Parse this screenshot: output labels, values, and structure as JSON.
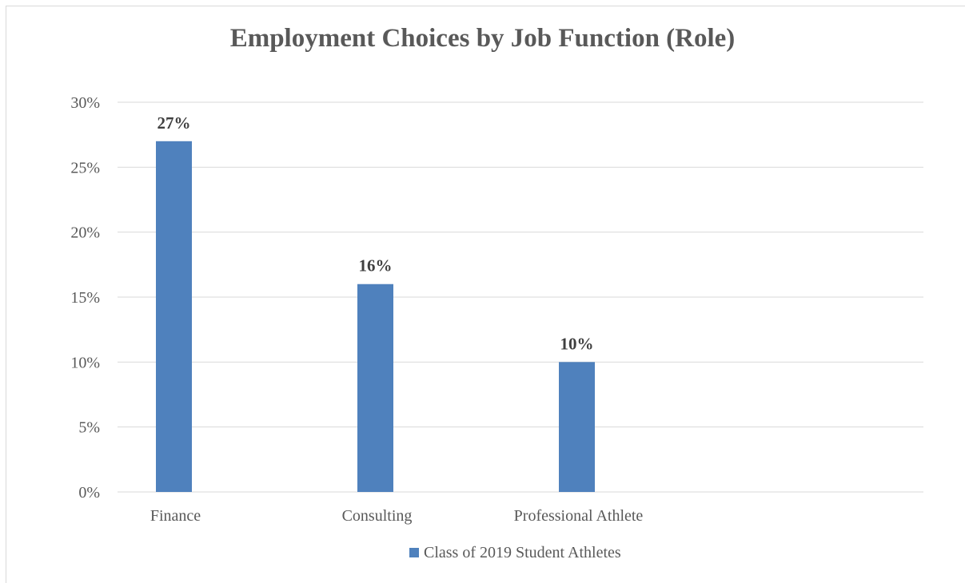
{
  "chart_data": {
    "type": "bar",
    "title": "Employment Choices by Job Function (Role)",
    "xlabel": "",
    "ylabel": "",
    "categories": [
      "Finance",
      "Consulting",
      "Professional Athlete",
      ""
    ],
    "series": [
      {
        "name": "Class of 2019 Student Athletes",
        "values": [
          27,
          16,
          10,
          null
        ],
        "data_labels": [
          "27%",
          "16%",
          "10%",
          ""
        ],
        "color": "#4f81bd"
      }
    ],
    "ylim": [
      0,
      30
    ],
    "yticks": [
      0,
      5,
      10,
      15,
      20,
      25,
      30
    ],
    "ytick_labels": [
      "0%",
      "5%",
      "10%",
      "15%",
      "20%",
      "25%",
      "30%"
    ],
    "grid": true,
    "legend_position": "bottom"
  },
  "colors": {
    "bar": "#4f81bd",
    "grid": "#d9d9d9",
    "text": "#595959",
    "data_label": "#404040"
  }
}
